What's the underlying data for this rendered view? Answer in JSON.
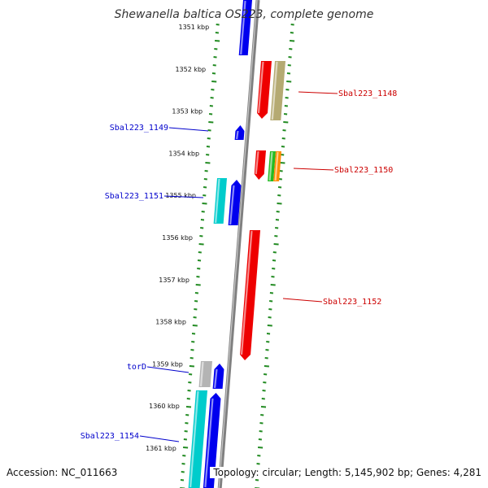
{
  "title": "Shewanella baltica OS223, complete genome",
  "footer": {
    "accession": "Accession: NC_011663",
    "summary": "Topology: circular; Length: 5,145,902 bp; Genes: 4,281"
  },
  "ruler": {
    "unit": "kbp",
    "ticks": [
      "1351 kbp",
      "1352 kbp",
      "1353 kbp",
      "1354 kbp",
      "1355 kbp",
      "1356 kbp",
      "1357 kbp",
      "1358 kbp",
      "1359 kbp",
      "1360 kbp",
      "1361 kbp"
    ]
  },
  "colors": {
    "backbone": "#808080",
    "scale_marks": "#228b22",
    "left_labels": "#0000cc",
    "right_labels": "#cc0000",
    "blue_gene": "#0000ee",
    "red_gene": "#ee0000",
    "cyan_gene": "#00cccc",
    "olive_gene": "#b5aa72",
    "green_gene": "#22bb22",
    "orange_gene": "#ff8c00",
    "gray_gene": "#b4b4b4"
  },
  "genes": {
    "left": [
      {
        "label": "Sbal223_1149"
      },
      {
        "label": "Sbal223_1151"
      },
      {
        "label": "torD"
      },
      {
        "label": "Sbal223_1154"
      }
    ],
    "right": [
      {
        "label": "Sbal223_1148"
      },
      {
        "label": "Sbal223_1150"
      },
      {
        "label": "Sbal223_1152"
      }
    ]
  }
}
